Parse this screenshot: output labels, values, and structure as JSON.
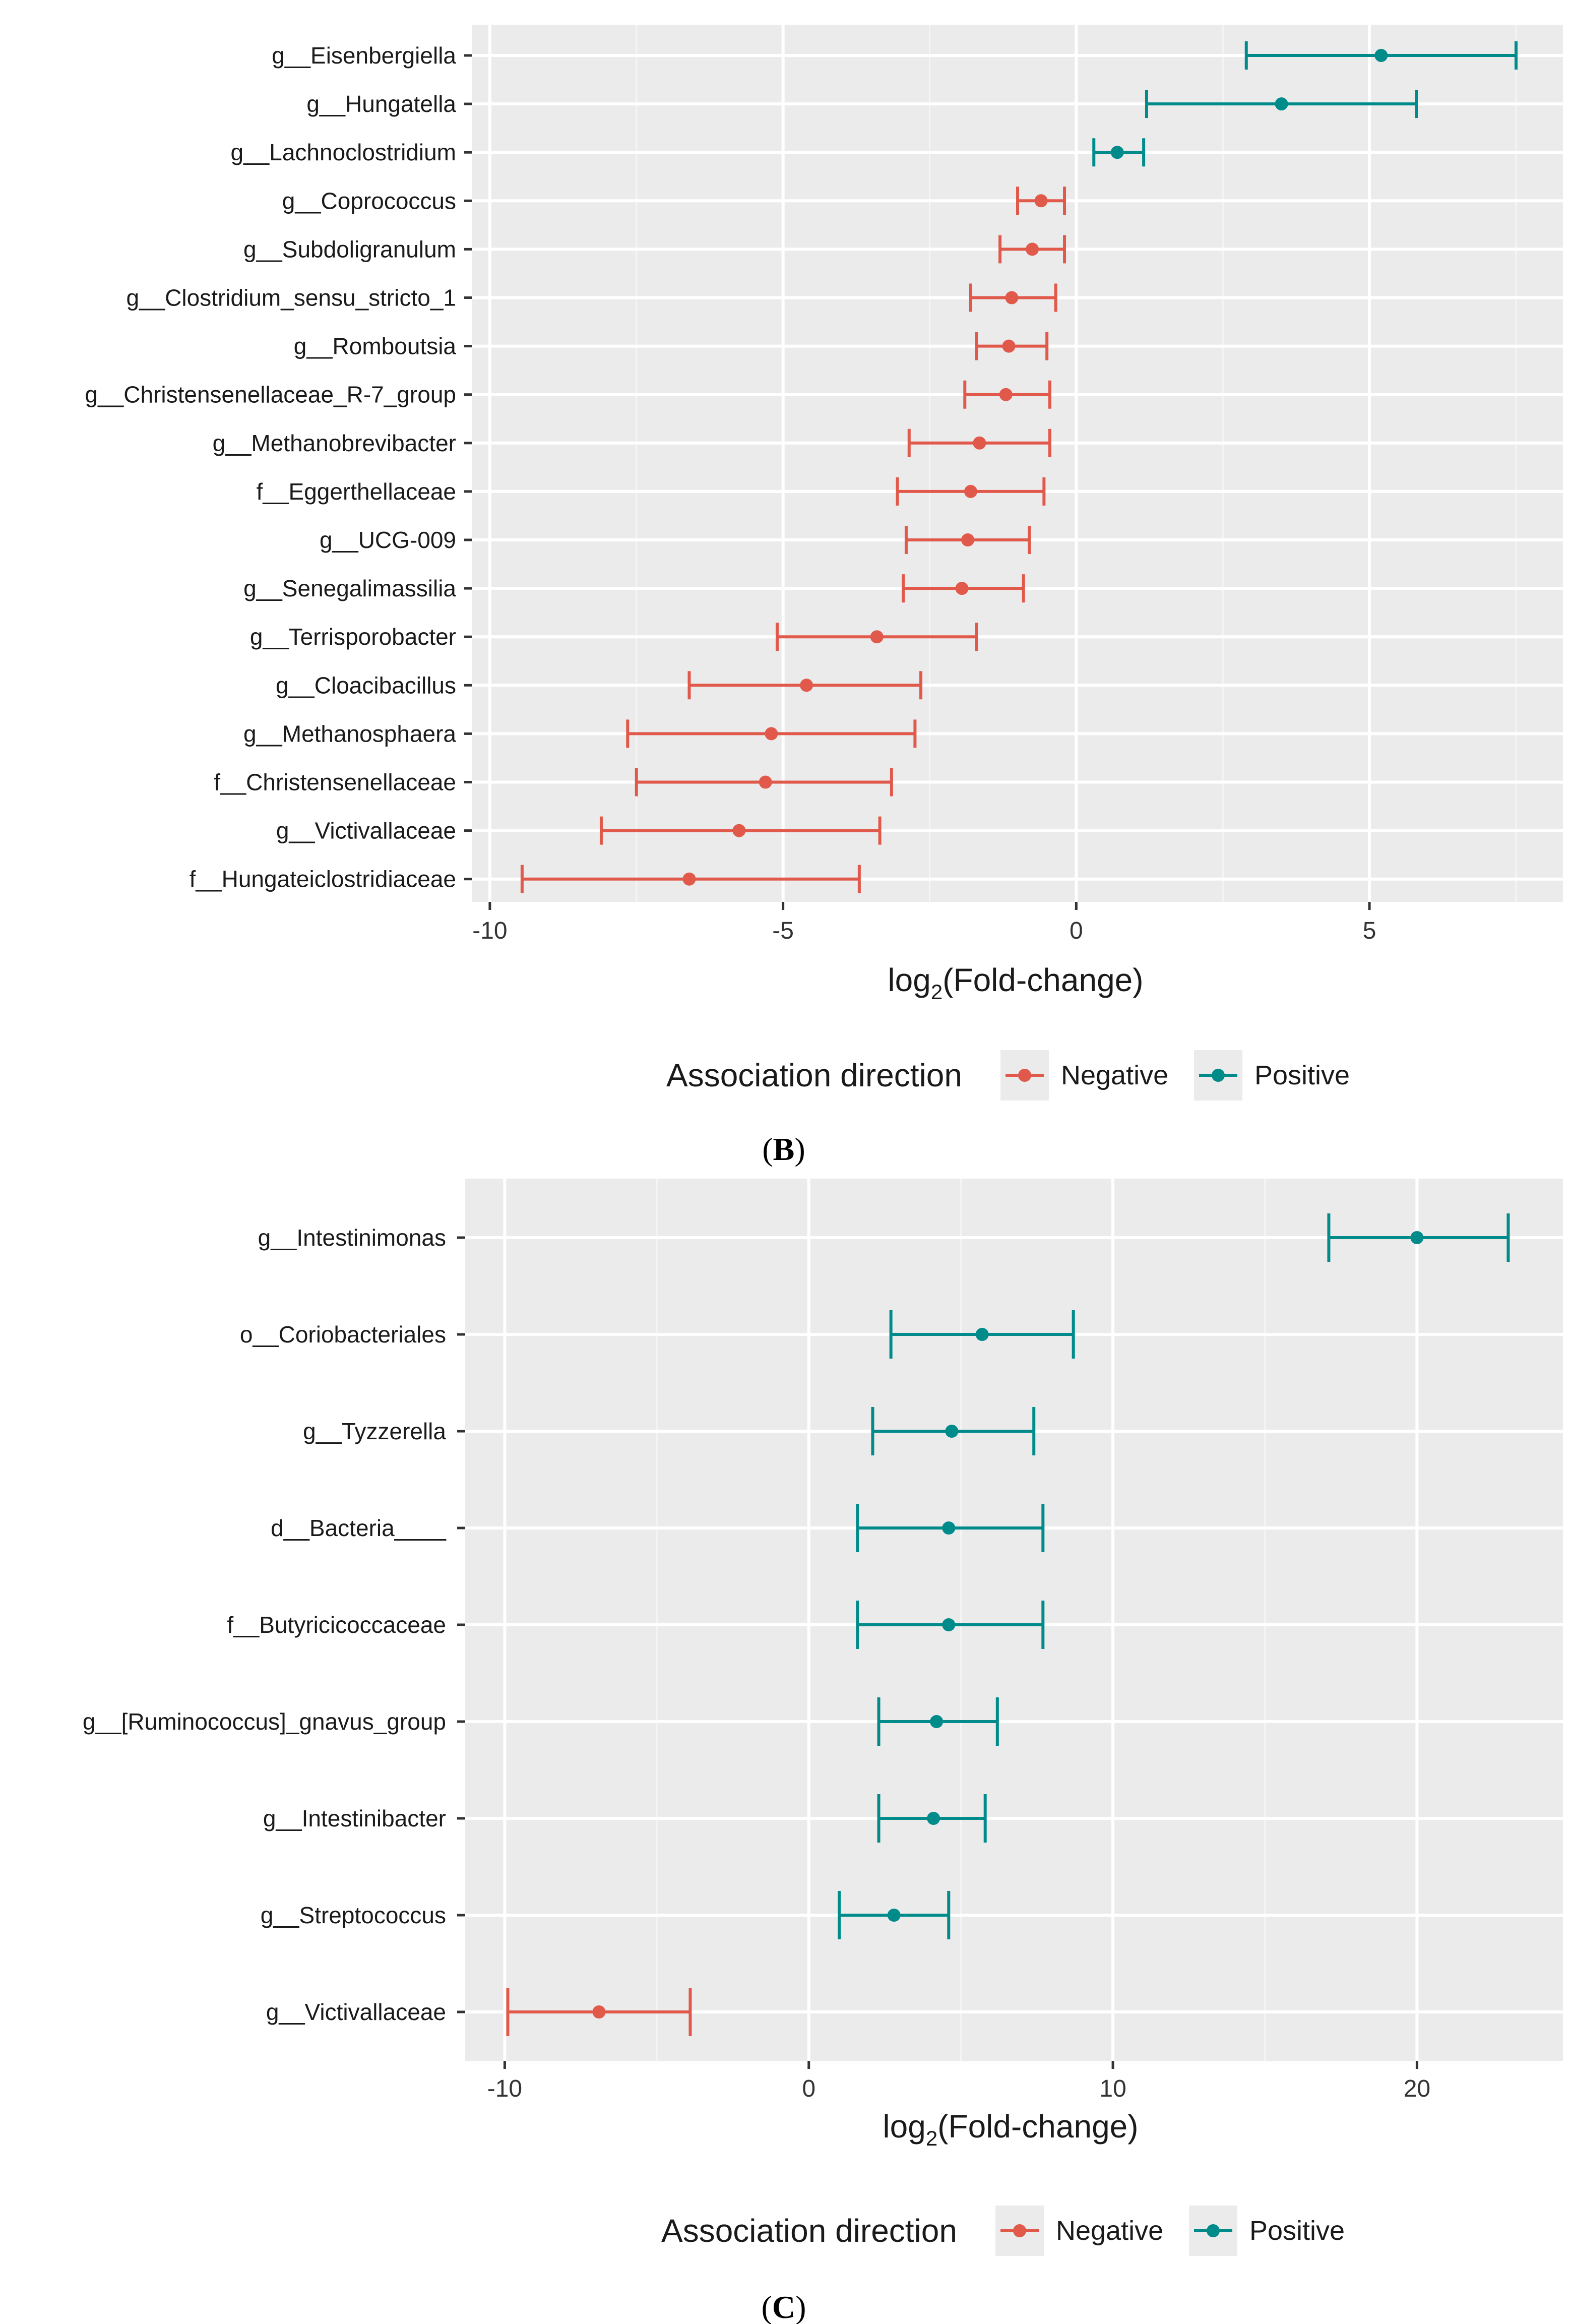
{
  "chart_data": [
    {
      "type": "forest",
      "panel_label": "B",
      "xlabel_main": "log",
      "xlabel_sub": "2",
      "xlabel_rest": "(Fold-change)",
      "xlim": [
        -10.3,
        8.3
      ],
      "xticks": [
        -10,
        -5,
        0,
        5
      ],
      "xtick_labels": [
        "-10",
        "-5",
        "0",
        "5"
      ],
      "legend": {
        "title": "Association direction",
        "negative_label": "Negative",
        "positive_label": "Positive"
      },
      "colors": {
        "Negative": "#e0594b",
        "Positive": "#008b8b"
      },
      "rows": [
        {
          "label": "g__Eisenbergiella",
          "estimate": 5.2,
          "lower": 2.9,
          "upper": 7.5,
          "direction": "Positive"
        },
        {
          "label": "g__Hungatella",
          "estimate": 3.5,
          "lower": 1.2,
          "upper": 5.8,
          "direction": "Positive"
        },
        {
          "label": "g__Lachnoclostridium",
          "estimate": 0.7,
          "lower": 0.3,
          "upper": 1.15,
          "direction": "Positive"
        },
        {
          "label": "g__Coprococcus",
          "estimate": -0.6,
          "lower": -1.0,
          "upper": -0.2,
          "direction": "Negative"
        },
        {
          "label": "g__Subdoligranulum",
          "estimate": -0.75,
          "lower": -1.3,
          "upper": -0.2,
          "direction": "Negative"
        },
        {
          "label": "g__Clostridium_sensu_stricto_1",
          "estimate": -1.1,
          "lower": -1.8,
          "upper": -0.35,
          "direction": "Negative"
        },
        {
          "label": "g__Romboutsia",
          "estimate": -1.15,
          "lower": -1.7,
          "upper": -0.5,
          "direction": "Negative"
        },
        {
          "label": "g__Christensenellaceae_R-7_group",
          "estimate": -1.2,
          "lower": -1.9,
          "upper": -0.45,
          "direction": "Negative"
        },
        {
          "label": "g__Methanobrevibacter",
          "estimate": -1.65,
          "lower": -2.85,
          "upper": -0.45,
          "direction": "Negative"
        },
        {
          "label": "f__Eggerthellaceae",
          "estimate": -1.8,
          "lower": -3.05,
          "upper": -0.55,
          "direction": "Negative"
        },
        {
          "label": "g__UCG-009",
          "estimate": -1.85,
          "lower": -2.9,
          "upper": -0.8,
          "direction": "Negative"
        },
        {
          "label": "g__Senegalimassilia",
          "estimate": -1.95,
          "lower": -2.95,
          "upper": -0.9,
          "direction": "Negative"
        },
        {
          "label": "g__Terrisporobacter",
          "estimate": -3.4,
          "lower": -5.1,
          "upper": -1.7,
          "direction": "Negative"
        },
        {
          "label": "g__Cloacibacillus",
          "estimate": -4.6,
          "lower": -6.6,
          "upper": -2.65,
          "direction": "Negative"
        },
        {
          "label": "g__Methanosphaera",
          "estimate": -5.2,
          "lower": -7.65,
          "upper": -2.75,
          "direction": "Negative"
        },
        {
          "label": "f__Christensenellaceae",
          "estimate": -5.3,
          "lower": -7.5,
          "upper": -3.15,
          "direction": "Negative"
        },
        {
          "label": "g__Victivallaceae",
          "estimate": -5.75,
          "lower": -8.1,
          "upper": -3.35,
          "direction": "Negative"
        },
        {
          "label": "f__Hungateiclostridiaceae",
          "estimate": -6.6,
          "lower": -9.45,
          "upper": -3.7,
          "direction": "Negative"
        }
      ]
    },
    {
      "type": "forest",
      "panel_label": "C",
      "xlabel_main": "log",
      "xlabel_sub": "2",
      "xlabel_rest": "(Fold-change)",
      "xlim": [
        -11.3,
        24.8
      ],
      "xticks": [
        -10,
        0,
        10,
        20
      ],
      "xtick_labels": [
        "-10",
        "0",
        "10",
        "20"
      ],
      "legend": {
        "title": "Association direction",
        "negative_label": "Negative",
        "positive_label": "Positive"
      },
      "colors": {
        "Negative": "#e0594b",
        "Positive": "#008b8b"
      },
      "rows": [
        {
          "label": "g__Intestinimonas",
          "estimate": 20,
          "lower": 17.1,
          "upper": 23,
          "direction": "Positive"
        },
        {
          "label": "o__Coriobacteriales",
          "estimate": 5.7,
          "lower": 2.7,
          "upper": 8.7,
          "direction": "Positive"
        },
        {
          "label": "g__Tyzzerella",
          "estimate": 4.7,
          "lower": 2.1,
          "upper": 7.4,
          "direction": "Positive"
        },
        {
          "label": "d__Bacteria____",
          "estimate": 4.6,
          "lower": 1.6,
          "upper": 7.7,
          "direction": "Positive"
        },
        {
          "label": "f__Butyricicoccaceae",
          "estimate": 4.6,
          "lower": 1.6,
          "upper": 7.7,
          "direction": "Positive"
        },
        {
          "label": "g__[Ruminococcus]_gnavus_group",
          "estimate": 4.2,
          "lower": 2.3,
          "upper": 6.2,
          "direction": "Positive"
        },
        {
          "label": "g__Intestinibacter",
          "estimate": 4.1,
          "lower": 2.3,
          "upper": 5.8,
          "direction": "Positive"
        },
        {
          "label": "g__Streptococcus",
          "estimate": 2.8,
          "lower": 1.0,
          "upper": 4.6,
          "direction": "Positive"
        },
        {
          "label": "g__Victivallaceae",
          "estimate": -6.9,
          "lower": -9.9,
          "upper": -3.9,
          "direction": "Negative"
        }
      ]
    }
  ]
}
